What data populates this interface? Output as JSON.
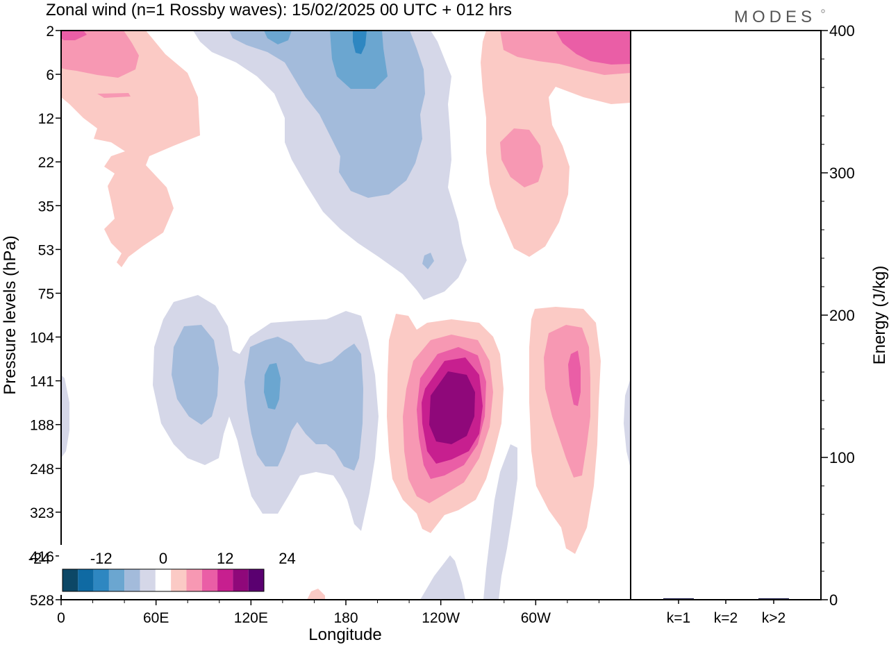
{
  "title": "Zonal wind (n=1 Rossby waves):  15/02/2025  00 UTC  + 012 hrs",
  "logo_text": "MODES",
  "chart_data": [
    {
      "type": "heatmap",
      "title": "Zonal wind (n=1 Rossby waves):  15/02/2025  00 UTC  + 012 hrs",
      "xlabel": "Longitude",
      "ylabel": "Pressure levels (hPa)",
      "x_ticks": [
        "0",
        "60E",
        "120E",
        "180",
        "120W",
        "60W"
      ],
      "x_tick_degrees": [
        0,
        60,
        120,
        180,
        240,
        300
      ],
      "xlim": [
        0,
        360
      ],
      "y_ticks": [
        "2",
        "6",
        "12",
        "22",
        "35",
        "53",
        "75",
        "104",
        "141",
        "188",
        "248",
        "323",
        "416",
        "528"
      ],
      "y_scale": "categorical pressure levels, top = 2 hPa, bottom = 528 hPa",
      "colorbar": {
        "labels": [
          "-24",
          "-12",
          "0",
          "12",
          "24"
        ],
        "label_values": [
          -24,
          -12,
          0,
          12,
          24
        ],
        "levels": [
          -30,
          -27,
          -24,
          -21,
          -18,
          -15,
          -12,
          -9,
          -6,
          -3,
          3,
          6,
          9,
          12,
          15,
          18,
          21,
          24,
          27,
          30
        ],
        "colors": [
          "#0c4766",
          "#0f6aa3",
          "#2e87c1",
          "#6ba6d0",
          "#a3bbdb",
          "#d5d7e8",
          "#ffffff",
          "#fbcac5",
          "#f798b3",
          "#ea5ea6",
          "#c71f8f",
          "#8f087a",
          "#5a0070"
        ]
      },
      "features": [
        {
          "kind": "negative",
          "lon": 170,
          "level_index": 1.5,
          "peak": -12
        },
        {
          "kind": "negative",
          "lon": 40,
          "level_index": 8.5,
          "peak": -9
        },
        {
          "kind": "negative",
          "lon": 123,
          "level_index": 8.7,
          "peak": -12
        },
        {
          "kind": "positive",
          "lon": 235,
          "level_index": 8.8,
          "peak": 24
        },
        {
          "kind": "positive",
          "lon": 325,
          "level_index": 8.5,
          "peak": 12
        },
        {
          "kind": "positive",
          "lon": 290,
          "level_index": 3,
          "peak": 9
        },
        {
          "kind": "positive",
          "lon": 20,
          "level_index": 1.5,
          "peak": 6
        }
      ]
    },
    {
      "type": "bar",
      "categories": [
        "k=1",
        "k=2",
        "k>2"
      ],
      "values": [
        1,
        0,
        1
      ],
      "ylabel": "Energy (J/kg)",
      "ylim": [
        0,
        400
      ],
      "y_ticks": [
        0,
        100,
        200,
        300,
        400
      ]
    }
  ]
}
